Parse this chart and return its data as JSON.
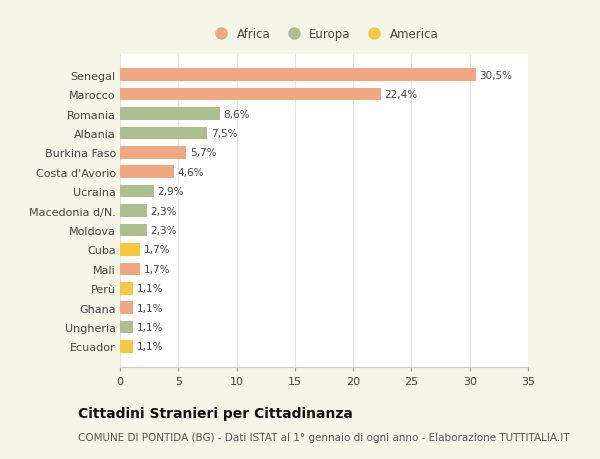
{
  "categories": [
    "Senegal",
    "Marocco",
    "Romania",
    "Albania",
    "Burkina Faso",
    "Costa d'Avorio",
    "Ucraina",
    "Macedonia d/N.",
    "Moldova",
    "Cuba",
    "Mali",
    "Perù",
    "Ghana",
    "Ungheria",
    "Ecuador"
  ],
  "values": [
    30.5,
    22.4,
    8.6,
    7.5,
    5.7,
    4.6,
    2.9,
    2.3,
    2.3,
    1.7,
    1.7,
    1.1,
    1.1,
    1.1,
    1.1
  ],
  "labels": [
    "30,5%",
    "22,4%",
    "8,6%",
    "7,5%",
    "5,7%",
    "4,6%",
    "2,9%",
    "2,3%",
    "2,3%",
    "1,7%",
    "1,7%",
    "1,1%",
    "1,1%",
    "1,1%",
    "1,1%"
  ],
  "continents": [
    "Africa",
    "Africa",
    "Europa",
    "Europa",
    "Africa",
    "Africa",
    "Europa",
    "Europa",
    "Europa",
    "America",
    "Africa",
    "America",
    "Africa",
    "Europa",
    "America"
  ],
  "colors": {
    "Africa": "#F0A882",
    "Europa": "#ADBF8E",
    "America": "#F5C842"
  },
  "legend_order": [
    "Africa",
    "Europa",
    "America"
  ],
  "xlim": [
    0,
    35
  ],
  "xticks": [
    0,
    5,
    10,
    15,
    20,
    25,
    30,
    35
  ],
  "title": "Cittadini Stranieri per Cittadinanza",
  "subtitle": "COMUNE DI PONTIDA (BG) - Dati ISTAT al 1° gennaio di ogni anno - Elaborazione TUTTITALIA.IT",
  "outer_bg": "#F5F5E8",
  "inner_bg": "#FFFFFF",
  "grid_color": "#E8E8E8",
  "bar_height": 0.65,
  "label_fontsize": 7.5,
  "ytick_fontsize": 8,
  "xtick_fontsize": 8,
  "title_fontsize": 10,
  "subtitle_fontsize": 7.5,
  "legend_fontsize": 8.5
}
